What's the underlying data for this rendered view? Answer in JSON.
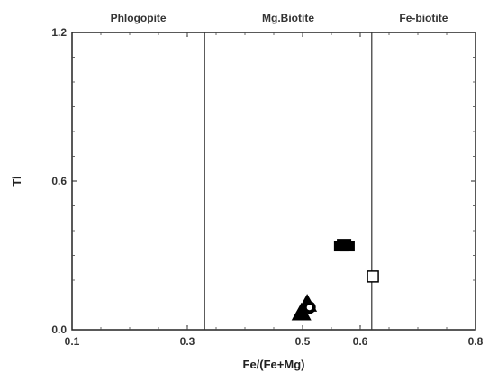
{
  "chart_data": {
    "type": "scatter",
    "title": "",
    "xlabel": "Fe/(Fe+Mg)",
    "ylabel": "Ti",
    "xlim": [
      0.1,
      0.8
    ],
    "ylim": [
      0.0,
      1.2
    ],
    "x_ticks": [
      0.1,
      0.3,
      0.5,
      0.6,
      0.8
    ],
    "x_tick_labels": [
      "0.1",
      "0.3",
      "0.5",
      "0.6",
      "0.8"
    ],
    "y_ticks": [
      0.0,
      0.6,
      1.2
    ],
    "y_tick_labels": [
      "0.0",
      "0.6",
      "1.2"
    ],
    "grid": false,
    "boundaries": [
      0.33,
      0.62
    ],
    "regions": [
      {
        "label": "Phlogopite",
        "x_center": 0.215
      },
      {
        "label": "Mg.Biotite",
        "x_center": 0.475
      },
      {
        "label": "Fe-biotite",
        "x_center": 0.71
      }
    ],
    "series": [
      {
        "marker": "filled-square",
        "points": [
          {
            "x": 0.567,
            "y": 0.338
          },
          {
            "x": 0.578,
            "y": 0.338
          },
          {
            "x": 0.572,
            "y": 0.345
          }
        ]
      },
      {
        "marker": "open-square",
        "points": [
          {
            "x": 0.622,
            "y": 0.215
          }
        ]
      },
      {
        "marker": "filled-triangle",
        "points": [
          {
            "x": 0.508,
            "y": 0.105
          },
          {
            "x": 0.498,
            "y": 0.07
          }
        ]
      },
      {
        "marker": "filled-circle",
        "points": [
          {
            "x": 0.512,
            "y": 0.09
          }
        ]
      },
      {
        "marker": "open-circle",
        "points": [
          {
            "x": 0.512,
            "y": 0.09
          }
        ]
      }
    ]
  }
}
